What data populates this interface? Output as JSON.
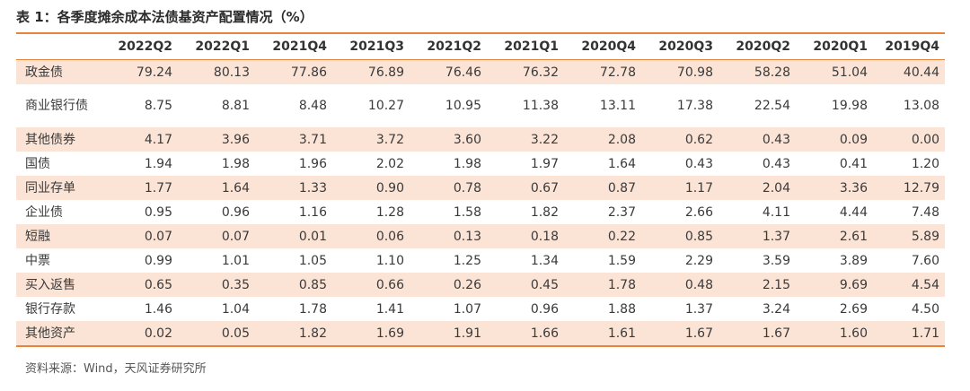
{
  "title": "表 1：各季度摊余成本法债基资产配置情况（%）",
  "columns": [
    "",
    "2022Q2",
    "2022Q1",
    "2021Q4",
    "2021Q3",
    "2021Q2",
    "2021Q1",
    "2020Q4",
    "2020Q3",
    "2020Q2",
    "2020Q1",
    "2019Q4"
  ],
  "rows": [
    {
      "label": "政金债",
      "values": [
        "79.24",
        "80.13",
        "77.86",
        "76.89",
        "76.46",
        "76.32",
        "72.78",
        "70.98",
        "58.28",
        "51.04",
        "40.44"
      ]
    },
    {
      "label": "商业银行债",
      "values": [
        "8.75",
        "8.81",
        "8.48",
        "10.27",
        "10.95",
        "11.38",
        "13.11",
        "17.38",
        "22.54",
        "19.98",
        "13.08"
      ]
    },
    {
      "label": "其他债券",
      "values": [
        "4.17",
        "3.96",
        "3.71",
        "3.72",
        "3.60",
        "3.22",
        "2.08",
        "0.62",
        "0.43",
        "0.09",
        "0.00"
      ]
    },
    {
      "label": "国债",
      "values": [
        "1.94",
        "1.98",
        "1.96",
        "2.02",
        "1.98",
        "1.97",
        "1.64",
        "0.43",
        "0.43",
        "0.41",
        "1.20"
      ]
    },
    {
      "label": "同业存单",
      "values": [
        "1.77",
        "1.64",
        "1.33",
        "0.90",
        "0.78",
        "0.67",
        "0.87",
        "1.17",
        "2.04",
        "3.36",
        "12.79"
      ]
    },
    {
      "label": "企业债",
      "values": [
        "0.95",
        "0.96",
        "1.16",
        "1.28",
        "1.58",
        "1.82",
        "2.37",
        "2.66",
        "4.11",
        "4.44",
        "7.48"
      ]
    },
    {
      "label": "短融",
      "values": [
        "0.07",
        "0.07",
        "0.01",
        "0.06",
        "0.13",
        "0.18",
        "0.22",
        "0.85",
        "1.37",
        "2.61",
        "5.89"
      ]
    },
    {
      "label": "中票",
      "values": [
        "0.99",
        "1.01",
        "1.05",
        "1.10",
        "1.25",
        "1.34",
        "1.59",
        "2.29",
        "3.59",
        "3.89",
        "7.60"
      ]
    },
    {
      "label": "买入返售",
      "values": [
        "0.65",
        "0.35",
        "0.85",
        "0.66",
        "0.26",
        "0.45",
        "1.78",
        "0.48",
        "2.15",
        "9.69",
        "4.54"
      ]
    },
    {
      "label": "银行存款",
      "values": [
        "1.46",
        "1.04",
        "1.78",
        "1.41",
        "1.07",
        "0.96",
        "1.88",
        "1.37",
        "3.24",
        "2.69",
        "4.50"
      ]
    },
    {
      "label": "其他资产",
      "values": [
        "0.02",
        "0.05",
        "1.82",
        "1.69",
        "1.91",
        "1.66",
        "1.61",
        "1.67",
        "1.67",
        "1.60",
        "1.71"
      ]
    }
  ],
  "source": "资料来源：Wind，天风证券研究所"
}
